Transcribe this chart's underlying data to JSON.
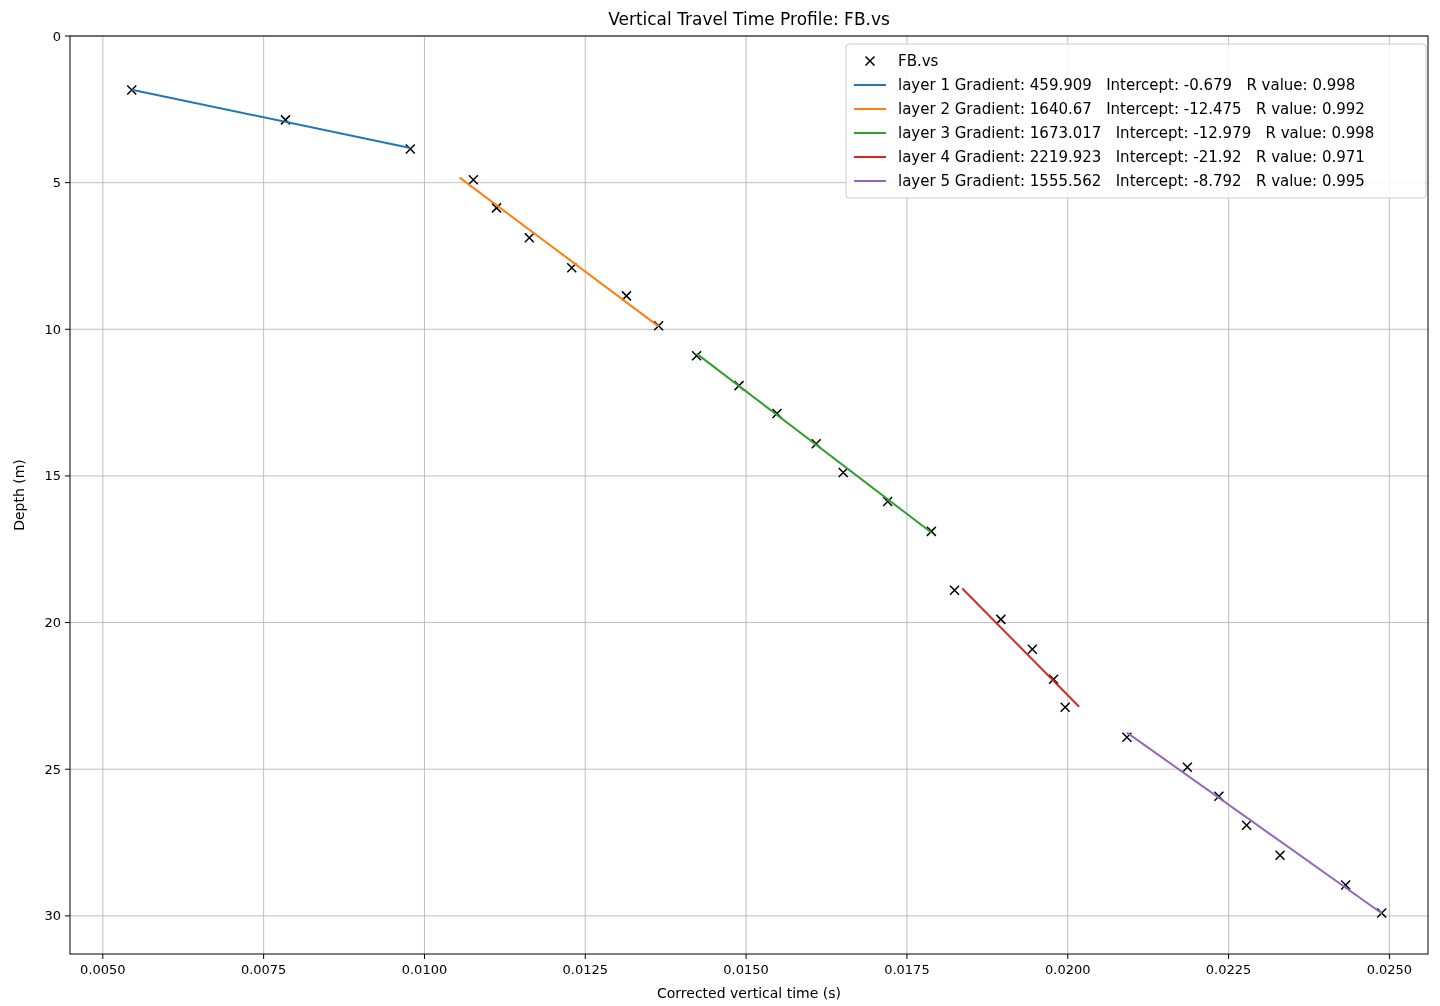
{
  "chart_data": {
    "type": "scatter",
    "title": "Vertical Travel Time Profile: FB.vs",
    "xlabel": "Corrected vertical time (s)",
    "ylabel": "Depth (m)",
    "xlim": [
      0.00449,
      0.0256
    ],
    "ylim": [
      31.3,
      0
    ],
    "xticks": [
      {
        "value": 0.005,
        "label": "0.0050"
      },
      {
        "value": 0.0075,
        "label": "0.0075"
      },
      {
        "value": 0.01,
        "label": "0.0100"
      },
      {
        "value": 0.0125,
        "label": "0.0125"
      },
      {
        "value": 0.015,
        "label": "0.0150"
      },
      {
        "value": 0.0175,
        "label": "0.0175"
      },
      {
        "value": 0.02,
        "label": "0.0200"
      },
      {
        "value": 0.0225,
        "label": "0.0225"
      },
      {
        "value": 0.025,
        "label": "0.0250"
      }
    ],
    "yticks": [
      0,
      5,
      10,
      15,
      20,
      25,
      30
    ],
    "grid": true,
    "legend": "top right",
    "series": [
      {
        "name": "FB.vs",
        "marker": "cross",
        "color": "#000000",
        "x": [
          0.00545,
          0.00784,
          0.00978,
          0.01076,
          0.01112,
          0.01163,
          0.01229,
          0.01314,
          0.01364,
          0.01423,
          0.01489,
          0.01548,
          0.01609,
          0.01651,
          0.0172,
          0.01788,
          0.01824,
          0.01896,
          0.01945,
          0.01978,
          0.01996,
          0.02092,
          0.02186,
          0.02235,
          0.02278,
          0.0233,
          0.02432,
          0.02488
        ],
        "values": [
          1.84,
          2.86,
          3.85,
          4.9,
          5.86,
          6.88,
          7.9,
          8.86,
          9.88,
          10.9,
          11.92,
          12.87,
          13.9,
          14.88,
          15.87,
          16.89,
          18.9,
          19.89,
          20.91,
          21.93,
          22.89,
          23.91,
          24.93,
          25.92,
          26.91,
          27.93,
          28.95,
          29.9
        ]
      },
      {
        "name": "layer 1 Gradient: 459.909   Intercept: -0.679   R value: 0.998",
        "type": "line",
        "color": "#1f77b4",
        "x": [
          0.00545,
          0.00978
        ],
        "values": [
          1.83,
          3.82
        ]
      },
      {
        "name": "layer 2 Gradient: 1640.67   Intercept: -12.475   R value: 0.992",
        "type": "line",
        "color": "#ff7f0e",
        "x": [
          0.010547,
          0.01364
        ],
        "values": [
          4.83,
          9.9
        ]
      },
      {
        "name": "layer 3 Gradient: 1673.017   Intercept: -12.979   R value: 0.998",
        "type": "line",
        "color": "#2ca02c",
        "x": [
          0.01423,
          0.01788
        ],
        "values": [
          10.83,
          16.93
        ]
      },
      {
        "name": "layer 4 Gradient: 2219.923   Intercept: -21.92   R value: 0.971",
        "type": "line",
        "color": "#d62728",
        "x": [
          0.01836,
          0.020177
        ],
        "values": [
          18.84,
          22.87
        ]
      },
      {
        "name": "layer 5 Gradient: 1555.562   Intercept: -8.792   R value: 0.995",
        "type": "line",
        "color": "#9467bd",
        "x": [
          0.02092,
          0.02488
        ],
        "values": [
          23.75,
          29.91
        ]
      }
    ]
  }
}
